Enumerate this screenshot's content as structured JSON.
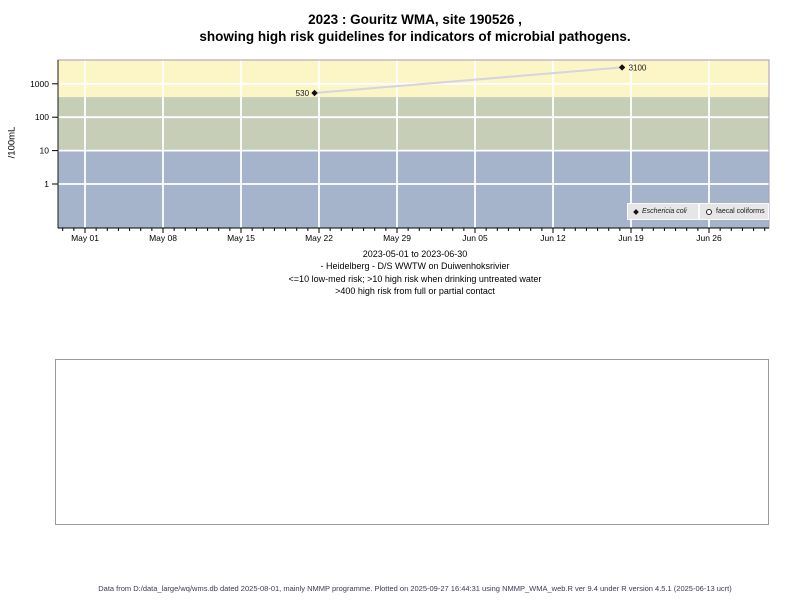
{
  "title": {
    "line1": "2023 : Gouritz WMA, site 190526 ,",
    "line2": "showing high risk guidelines for indicators of microbial pathogens."
  },
  "chart_data": {
    "type": "line",
    "title": "2023 : Gouritz WMA, site 190526 , showing high risk guidelines for indicators of microbial pathogens.",
    "ylabel": "/100mL",
    "y_scale": "log10",
    "y_ticks": [
      1000,
      100,
      10,
      1
    ],
    "ylim": [
      0.05,
      5500
    ],
    "x_tick_labels": [
      "May 01",
      "May 08",
      "May 15",
      "May 22",
      "May 29",
      "Jun 05",
      "Jun 12",
      "Jun 19",
      "Jun 26"
    ],
    "x_major_interval_days": 7,
    "x_minor_interval_days": 1,
    "date_range": "2023-05-01 to 2023-06-30",
    "grid": true,
    "grid_color": "#ffffff",
    "panel_border_color": "#a79ab3",
    "risk_bands": [
      {
        "label": ">400 high risk from full or partial contact",
        "from": 400,
        "to": 5500,
        "color": "#fcf5c5"
      },
      {
        "label": ">10 high risk when drinking untreated water",
        "from": 10,
        "to": 400,
        "color": "#c6ceb8"
      },
      {
        "label": "<=10 low-med risk",
        "from": 0.05,
        "to": 10,
        "color": "#a5b4cb"
      }
    ],
    "series": [
      {
        "name": "Eschericia coli",
        "marker": "filled-diamond",
        "line_color": "#d7d3df",
        "points": [
          {
            "date_label": "May 22",
            "day": 20.6,
            "value": 530,
            "label": "530",
            "label_side": "left"
          },
          {
            "date_label": "Jun 19",
            "day": 48.2,
            "value": 3100,
            "label": "3100",
            "label_side": "right"
          }
        ]
      },
      {
        "name": "faecal coliforms",
        "marker": "open-circle",
        "line_color": "#d7d3df",
        "points": []
      }
    ],
    "legend_position": "bottom-right"
  },
  "legend": {
    "items": [
      {
        "label": "Eschericia coli",
        "marker": "filled-diamond"
      },
      {
        "label": "faecal coliforms",
        "marker": "open-circle"
      }
    ]
  },
  "caption": {
    "lines": [
      "2023-05-01 to 2023-06-30",
      "- Heidelberg - D/S WWTW on Duiwenhoksrivier",
      "<=10 low-med risk; >10 high risk when drinking untreated water",
      ">400 high risk from full or partial contact"
    ]
  },
  "footer": {
    "text": "Data from D:/data_large/wq/wms.db dated 2025-08-01, mainly NMMP programme. Plotted on 2025-09-27 16:44:31 using NMMP_WMA_web.R ver 9.4 under R version 4.5.1 (2025-06-13 ucrt)"
  }
}
